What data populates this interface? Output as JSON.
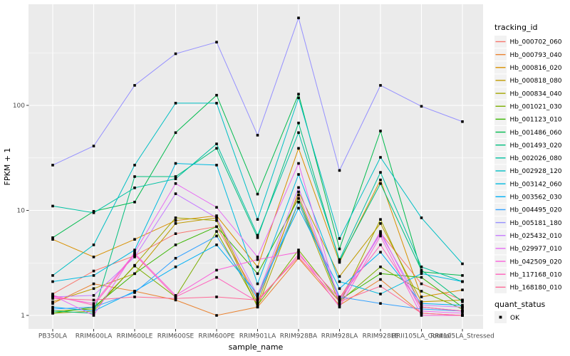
{
  "chart_data": {
    "type": "line",
    "x_type": "categorical",
    "title": "",
    "xlabel": "sample_name",
    "ylabel": "FPKM + 1",
    "y_scale": "log10",
    "y_ticks": [
      100,
      10,
      1
    ],
    "y_minor_ticks": [
      316.2,
      31.6,
      3.162
    ],
    "ylim": [
      0.74,
      1010
    ],
    "grid": true,
    "legend_position": "right",
    "legend_title": "tracking_id",
    "marker": {
      "shape": "square",
      "color": "#000000",
      "legend_title": "quant_status",
      "legend_label": "OK"
    },
    "categories": [
      "PB350LA",
      "RRIM600LA",
      "RRIM600LE",
      "RRIM600SE",
      "RRIM600PE",
      "RRIM901LA",
      "RRIM928BA",
      "RRIM928LA",
      "RRIM928LE",
      "RRII105LA_Control",
      "RRII105LA_Stressed"
    ],
    "series": [
      {
        "name": "Hb_000702_060",
        "color": "#F8766D",
        "values": [
          1.6,
          2.65,
          3.7,
          6.0,
          7.0,
          1.5,
          14,
          1.45,
          6.1,
          2.0,
          1.4
        ]
      },
      {
        "name": "Hb_000793_040",
        "color": "#EA8331",
        "values": [
          1.3,
          2.0,
          1.7,
          1.4,
          1.0,
          1.2,
          3.5,
          1.25,
          2.2,
          1.05,
          1.0
        ]
      },
      {
        "name": "Hb_000816_020",
        "color": "#D89000",
        "values": [
          5.3,
          3.6,
          5.3,
          8.0,
          8.9,
          2.9,
          39,
          3.2,
          19.5,
          1.5,
          1.75
        ]
      },
      {
        "name": "Hb_000818_080",
        "color": "#C09B00",
        "values": [
          1.35,
          1.8,
          2.5,
          7.5,
          8.5,
          1.3,
          15,
          2.35,
          7.5,
          1.35,
          1.4
        ]
      },
      {
        "name": "Hb_000834_040",
        "color": "#A3A500",
        "values": [
          1.05,
          1.1,
          3.0,
          8.5,
          8.0,
          1.2,
          12,
          1.3,
          8.2,
          1.2,
          1.1
        ]
      },
      {
        "name": "Hb_001021_030",
        "color": "#7CAE00",
        "values": [
          1.1,
          1.15,
          2.95,
          1.5,
          6.3,
          1.25,
          4.2,
          1.35,
          2.9,
          1.7,
          1.15
        ]
      },
      {
        "name": "Hb_001123_010",
        "color": "#39B600",
        "values": [
          1.05,
          1.2,
          2.5,
          4.7,
          7.0,
          2.5,
          13,
          1.4,
          2.5,
          2.3,
          1.2
        ]
      },
      {
        "name": "Hb_001486_060",
        "color": "#00BB4E",
        "values": [
          5.5,
          9.8,
          12,
          55,
          125,
          14.3,
          128,
          4.3,
          57,
          2.6,
          2.4
        ]
      },
      {
        "name": "Hb_001493_020",
        "color": "#00BF7D",
        "values": [
          1.1,
          1.05,
          21,
          21,
          39,
          5.5,
          68,
          3.3,
          18,
          2.7,
          1.35
        ]
      },
      {
        "name": "Hb_002026_080",
        "color": "#00C1A3",
        "values": [
          11,
          9.5,
          16.4,
          20,
          43,
          5.8,
          55,
          3.4,
          23,
          2.9,
          2.1
        ]
      },
      {
        "name": "Hb_002928_120",
        "color": "#00BFC4",
        "values": [
          2.4,
          4.7,
          27,
          105,
          105,
          8.2,
          118,
          5.4,
          32,
          8.5,
          3.1
        ]
      },
      {
        "name": "Hb_003142_060",
        "color": "#00BAE0",
        "values": [
          2.1,
          2.4,
          4.2,
          28,
          27,
          2.0,
          22,
          2.1,
          1.6,
          2.5,
          2.1
        ]
      },
      {
        "name": "Hb_003562_030",
        "color": "#00B0F6",
        "values": [
          1.2,
          1.1,
          1.7,
          2.9,
          4.7,
          1.6,
          10.5,
          1.8,
          4.0,
          1.3,
          1.25
        ]
      },
      {
        "name": "Hb_004495_020",
        "color": "#35A2FF",
        "values": [
          1.15,
          1.2,
          1.65,
          3.5,
          5.7,
          1.45,
          12,
          1.5,
          1.3,
          1.15,
          1.1
        ]
      },
      {
        "name": "Hb_005181_180",
        "color": "#9590FF",
        "values": [
          27,
          41,
          155,
          310,
          400,
          52,
          680,
          24,
          155,
          98,
          70
        ]
      },
      {
        "name": "Hb_025432_010",
        "color": "#C77CFF",
        "values": [
          1.5,
          1.55,
          3.6,
          14.4,
          8.5,
          1.55,
          16.5,
          1.4,
          6.0,
          1.25,
          1.2
        ]
      },
      {
        "name": "Hb_029977_010",
        "color": "#E76BF3",
        "values": [
          1.55,
          1.0,
          4.0,
          18,
          10.7,
          3.6,
          28,
          1.3,
          6.3,
          1.1,
          1.05
        ]
      },
      {
        "name": "Hb_042509_020",
        "color": "#FA62DB",
        "values": [
          1.5,
          1.3,
          3.9,
          1.55,
          2.7,
          3.4,
          4.0,
          1.2,
          5.7,
          1.0,
          1.0
        ]
      },
      {
        "name": "Hb_117168_010",
        "color": "#FF62BC",
        "values": [
          1.55,
          1.25,
          3.8,
          1.5,
          2.3,
          1.35,
          3.8,
          1.45,
          4.7,
          1.2,
          1.1
        ]
      },
      {
        "name": "Hb_168180_010",
        "color": "#FF6A98",
        "values": [
          1.45,
          1.4,
          1.5,
          1.45,
          1.5,
          1.4,
          3.6,
          1.35,
          1.9,
          1.05,
          1.0
        ]
      }
    ]
  },
  "style": {
    "panel_fill": "#EBEBEB",
    "grid_color": "#FFFFFF",
    "tick_text_color": "#4D4D4D",
    "title_text_color": "#000000",
    "legend_key_fill": "#F2F2F2",
    "background": "#FFFFFF"
  }
}
